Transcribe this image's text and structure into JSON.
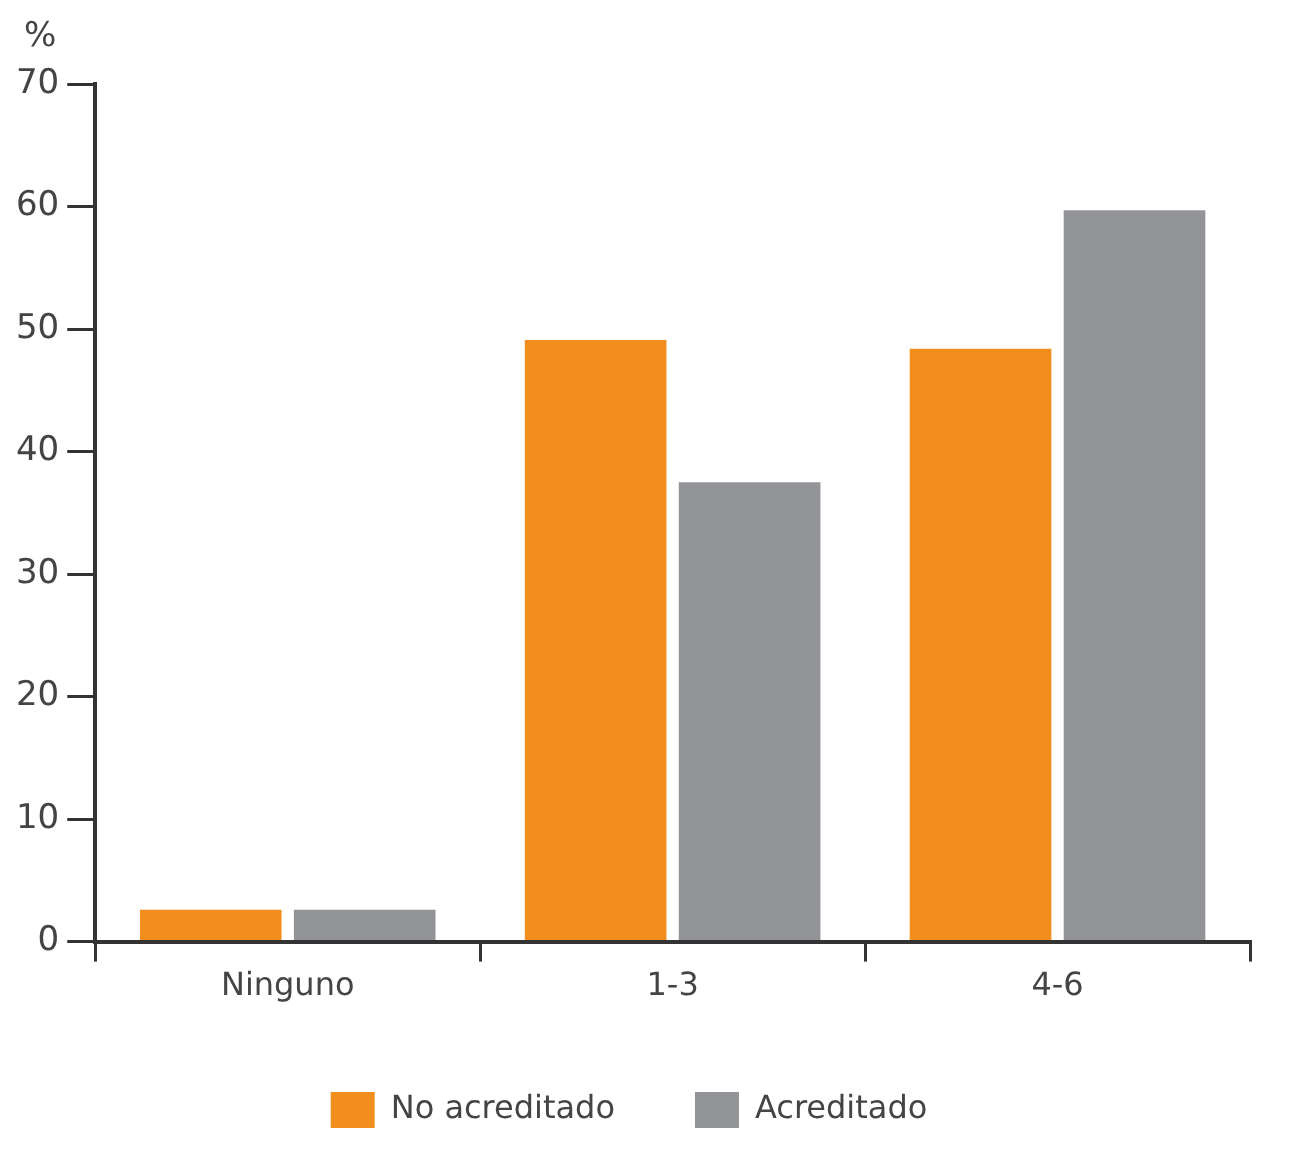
{
  "chart_data": {
    "type": "bar",
    "ylabel": "%",
    "categories": [
      "Ninguno",
      "1-3",
      "4-6"
    ],
    "series": [
      {
        "name": "No acreditado",
        "color": "#f28e1e",
        "values": [
          2.6,
          49.1,
          48.4
        ]
      },
      {
        "name": "Acreditado",
        "color": "#939497",
        "values": [
          2.6,
          37.5,
          59.7
        ]
      }
    ],
    "ylim": [
      0,
      70
    ],
    "yticks": [
      0,
      10,
      20,
      30,
      40,
      50,
      60,
      70
    ],
    "grid": false,
    "legend": "bottom"
  }
}
